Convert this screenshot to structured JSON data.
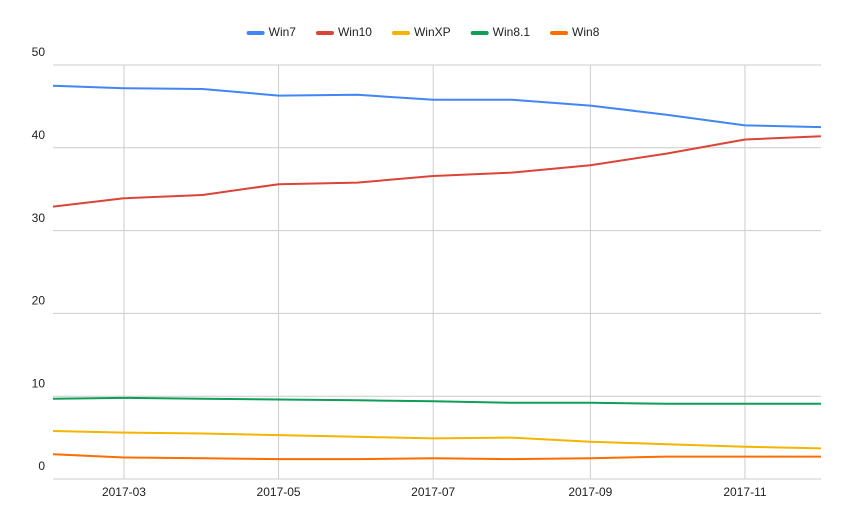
{
  "chart_data": {
    "type": "line",
    "x": [
      "2017-02",
      "2017-03",
      "2017-04",
      "2017-05",
      "2017-06",
      "2017-07",
      "2017-08",
      "2017-09",
      "2017-10",
      "2017-11",
      "2017-12"
    ],
    "xlim": [
      "2017-02",
      "2017-12"
    ],
    "xticks": [
      "2017-03",
      "2017-05",
      "2017-07",
      "2017-09",
      "2017-11"
    ],
    "ylim": [
      0,
      50
    ],
    "yticks": [
      0,
      10,
      20,
      30,
      40,
      50
    ],
    "grid": true,
    "legend": "top",
    "series": [
      {
        "name": "Win7",
        "color": "#4285f4",
        "values": [
          47.5,
          47.2,
          47.1,
          46.3,
          46.4,
          45.8,
          45.8,
          45.1,
          44.0,
          42.7,
          42.5
        ]
      },
      {
        "name": "Win10",
        "color": "#db4437",
        "values": [
          32.9,
          33.9,
          34.3,
          35.6,
          35.8,
          36.6,
          37.0,
          37.9,
          39.3,
          41.0,
          41.4
        ]
      },
      {
        "name": "WinXP",
        "color": "#f4b400",
        "values": [
          5.8,
          5.6,
          5.5,
          5.3,
          5.1,
          4.9,
          5.0,
          4.5,
          4.2,
          3.9,
          3.7
        ]
      },
      {
        "name": "Win8.1",
        "color": "#0f9d58",
        "values": [
          9.7,
          9.8,
          9.7,
          9.6,
          9.5,
          9.4,
          9.2,
          9.2,
          9.1,
          9.1,
          9.1
        ]
      },
      {
        "name": "Win8",
        "color": "#ff6d01",
        "values": [
          3.0,
          2.6,
          2.5,
          2.4,
          2.4,
          2.5,
          2.4,
          2.5,
          2.7,
          2.7,
          2.7
        ]
      }
    ]
  }
}
